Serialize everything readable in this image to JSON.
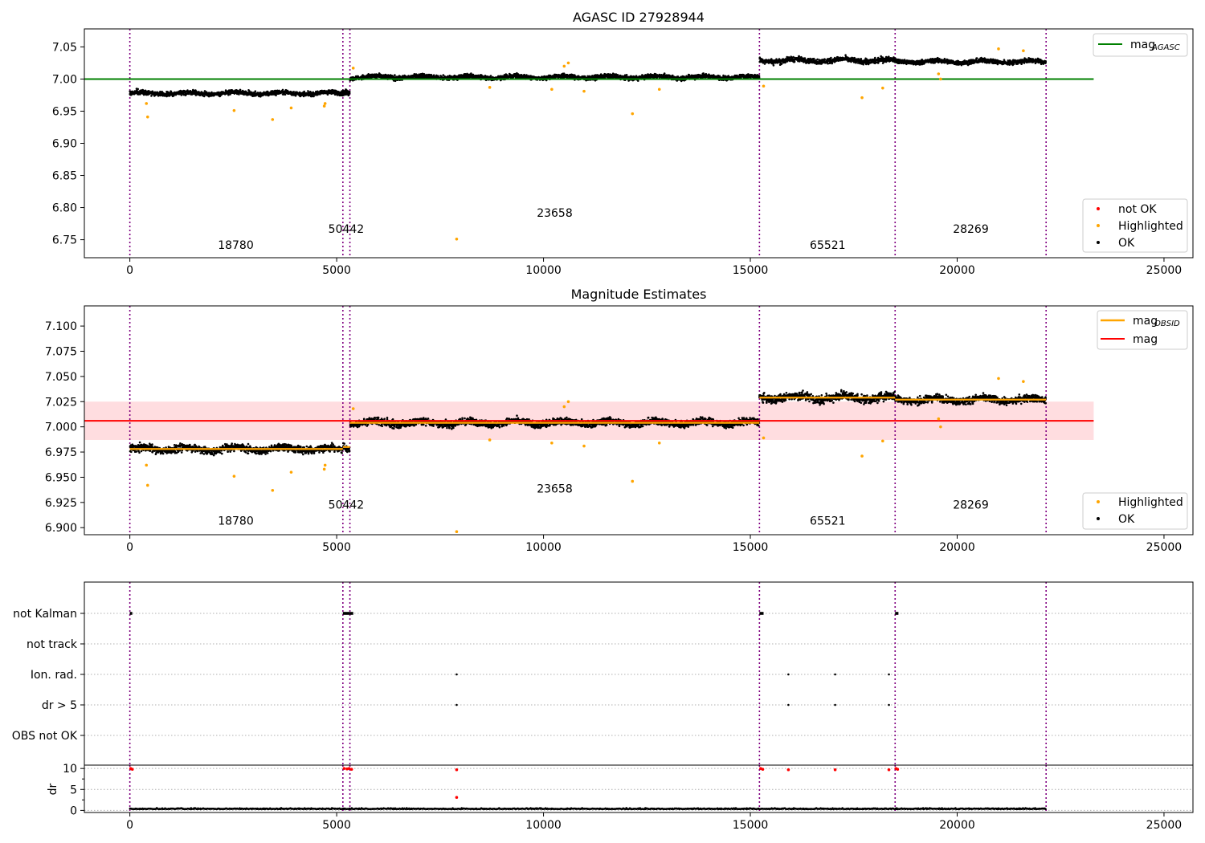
{
  "chart_data": [
    {
      "type": "scatter",
      "title": "AGASC ID 27928944",
      "xlim": [
        -1100,
        25700
      ],
      "ylim": [
        6.722,
        7.078
      ],
      "yticks": [
        7.05,
        7.0,
        6.95,
        6.9,
        6.85,
        6.8,
        6.75
      ],
      "ytick_labels": [
        "7.05",
        "7.00",
        "6.95",
        "6.90",
        "6.85",
        "6.80",
        "6.75"
      ],
      "xticks": [
        0,
        5000,
        10000,
        15000,
        20000,
        25000
      ],
      "xtick_labels": [
        "0",
        "5000",
        "10000",
        "15000",
        "20000",
        "25000"
      ],
      "obsid_boundaries": [
        0,
        5150,
        5320,
        15220,
        18500,
        22150
      ],
      "obsid_labels": [
        {
          "text": "18780",
          "x": 2560,
          "y": 6.736
        },
        {
          "text": "50442",
          "x": 5230,
          "y": 6.761
        },
        {
          "text": "23658",
          "x": 10270,
          "y": 6.786
        },
        {
          "text": "65521",
          "x": 16870,
          "y": 6.736
        },
        {
          "text": "28269",
          "x": 20330,
          "y": 6.761
        }
      ],
      "segments": [
        {
          "x0": 0,
          "x1": 5150,
          "center": 6.978,
          "spread": 0.006
        },
        {
          "x0": 5150,
          "x1": 5320,
          "center": 6.98,
          "spread": 0.006
        },
        {
          "x0": 5320,
          "x1": 15220,
          "center": 7.003,
          "spread": 0.006
        },
        {
          "x0": 15220,
          "x1": 18500,
          "center": 7.029,
          "spread": 0.007
        },
        {
          "x0": 18500,
          "x1": 22150,
          "center": 7.027,
          "spread": 0.006
        }
      ],
      "highlighted_points": [
        [
          400,
          6.962
        ],
        [
          430,
          6.941
        ],
        [
          2520,
          6.951
        ],
        [
          3450,
          6.937
        ],
        [
          3900,
          6.955
        ],
        [
          4700,
          6.958
        ],
        [
          4720,
          6.962
        ],
        [
          5400,
          7.017
        ],
        [
          7900,
          6.751
        ],
        [
          8700,
          6.987
        ],
        [
          10500,
          7.02
        ],
        [
          10600,
          7.025
        ],
        [
          10980,
          6.981
        ],
        [
          12150,
          6.946
        ],
        [
          12800,
          6.984
        ],
        [
          10200,
          6.984
        ],
        [
          15320,
          6.989
        ],
        [
          17700,
          6.971
        ],
        [
          18200,
          6.986
        ],
        [
          19550,
          7.008
        ],
        [
          19600,
          7.0
        ],
        [
          21000,
          7.047
        ],
        [
          21600,
          7.044
        ]
      ],
      "reference_line": {
        "name": "mag$_{AGASC}$",
        "display_name": "mag",
        "subscript": "AGASC",
        "y": 7.0,
        "x0": -1100,
        "x1": 23300,
        "color": "#008000"
      },
      "legend_top": [
        "mag_AGASC"
      ],
      "legend_bottom": [
        {
          "label": "not OK",
          "color": "#ff0000"
        },
        {
          "label": "Highlighted",
          "color": "#ffa500"
        },
        {
          "label": "OK",
          "color": "#000000"
        }
      ]
    },
    {
      "type": "scatter",
      "title": "Magnitude Estimates",
      "xlim": [
        -1100,
        25700
      ],
      "ylim": [
        6.893,
        7.12
      ],
      "yticks": [
        7.1,
        7.075,
        7.05,
        7.025,
        7.0,
        6.975,
        6.95,
        6.925,
        6.9
      ],
      "ytick_labels": [
        "7.100",
        "7.075",
        "7.050",
        "7.025",
        "7.000",
        "6.975",
        "6.950",
        "6.925",
        "6.900"
      ],
      "xticks": [
        0,
        5000,
        10000,
        15000,
        20000,
        25000
      ],
      "xtick_labels": [
        "0",
        "5000",
        "10000",
        "15000",
        "20000",
        "25000"
      ],
      "obsid_boundaries": [
        0,
        5150,
        5320,
        15220,
        18500,
        22150
      ],
      "obsid_labels": [
        {
          "text": "18780",
          "x": 2560,
          "y": 6.903
        },
        {
          "text": "50442",
          "x": 5230,
          "y": 6.919
        },
        {
          "text": "23658",
          "x": 10270,
          "y": 6.935
        },
        {
          "text": "65521",
          "x": 16870,
          "y": 6.903
        },
        {
          "text": "28269",
          "x": 20330,
          "y": 6.919
        }
      ],
      "segments": [
        {
          "x0": 0,
          "x1": 5150,
          "center": 6.978,
          "spread": 0.006,
          "mag_obsid": 6.978
        },
        {
          "x0": 5150,
          "x1": 5320,
          "center": 6.98,
          "spread": 0.006,
          "mag_obsid": 6.98
        },
        {
          "x0": 5320,
          "x1": 15220,
          "center": 7.004,
          "spread": 0.006,
          "mag_obsid": 7.004
        },
        {
          "x0": 15220,
          "x1": 18500,
          "center": 7.029,
          "spread": 0.007,
          "mag_obsid": 7.029
        },
        {
          "x0": 18500,
          "x1": 22150,
          "center": 7.027,
          "spread": 0.006,
          "mag_obsid": 7.027
        }
      ],
      "highlighted_points": [
        [
          400,
          6.962
        ],
        [
          430,
          6.942
        ],
        [
          2520,
          6.951
        ],
        [
          3450,
          6.937
        ],
        [
          3900,
          6.955
        ],
        [
          4700,
          6.958
        ],
        [
          4720,
          6.962
        ],
        [
          5400,
          7.018
        ],
        [
          7900,
          6.896
        ],
        [
          8700,
          6.987
        ],
        [
          10500,
          7.02
        ],
        [
          10600,
          7.025
        ],
        [
          10980,
          6.981
        ],
        [
          12150,
          6.946
        ],
        [
          12800,
          6.984
        ],
        [
          10200,
          6.984
        ],
        [
          15320,
          6.989
        ],
        [
          17700,
          6.971
        ],
        [
          18200,
          6.986
        ],
        [
          19550,
          7.008
        ],
        [
          19600,
          7.0
        ],
        [
          21000,
          7.048
        ],
        [
          21600,
          7.045
        ]
      ],
      "mag_line": {
        "y": 7.006,
        "band": [
          6.987,
          7.025
        ],
        "x0": -1100,
        "x1": 23300,
        "color": "#ff0000"
      },
      "legend_top": [
        {
          "label": "mag$_{OBSID}$",
          "display_name": "mag",
          "subscript": "OBSID",
          "color": "#ffa500"
        },
        {
          "label": "mag",
          "color": "#ff0000"
        }
      ],
      "legend_bottom": [
        {
          "label": "Highlighted",
          "color": "#ffa500"
        },
        {
          "label": "OK",
          "color": "#000000"
        }
      ]
    },
    {
      "type": "scatter",
      "title": "",
      "xlim": [
        -1100,
        25700
      ],
      "categories": [
        "not Kalman",
        "not track",
        "Ion. rad.",
        "dr > 5",
        "OBS not OK"
      ],
      "flags": {
        "not Kalman": [
          [
            0,
            40
          ],
          [
            5150,
            5320
          ],
          [
            5320,
            5400
          ],
          [
            15220,
            15320
          ],
          [
            18500,
            18580
          ]
        ],
        "not track": [],
        "Ion. rad.": [
          [
            7900,
            7900
          ],
          [
            15920,
            15920
          ],
          [
            17050,
            17050
          ],
          [
            18350,
            18350
          ]
        ],
        "dr > 5": [
          [
            7900,
            7900
          ],
          [
            15920,
            15920
          ],
          [
            17050,
            17050
          ],
          [
            18350,
            18350
          ]
        ],
        "OBS not OK": []
      },
      "obsid_boundaries": [
        0,
        5150,
        5320,
        15220,
        18500,
        22150
      ]
    },
    {
      "type": "scatter",
      "title": "",
      "ylabel": "dr",
      "xlim": [
        -1100,
        25700
      ],
      "ylim": [
        -0.5,
        10.8
      ],
      "yticks": [
        10,
        5,
        0
      ],
      "ytick_labels": [
        "10",
        "5",
        "0"
      ],
      "xticks": [
        0,
        5000,
        10000,
        15000,
        20000,
        25000
      ],
      "xtick_labels": [
        "0",
        "5000",
        "10000",
        "15000",
        "20000",
        "25000"
      ],
      "obsid_boundaries": [
        0,
        5150,
        5320,
        15220,
        18500,
        22150
      ],
      "red_points": [
        [
          20,
          10
        ],
        [
          60,
          9.8
        ],
        [
          5180,
          10
        ],
        [
          5250,
          9.9
        ],
        [
          5300,
          10
        ],
        [
          5360,
          9.8
        ],
        [
          7900,
          9.7
        ],
        [
          15250,
          10
        ],
        [
          15300,
          9.8
        ],
        [
          15920,
          9.7
        ],
        [
          17050,
          9.7
        ],
        [
          18350,
          9.7
        ],
        [
          18520,
          10
        ],
        [
          18560,
          9.8
        ],
        [
          7900,
          3.1
        ]
      ],
      "dr_level": 0.3
    }
  ]
}
